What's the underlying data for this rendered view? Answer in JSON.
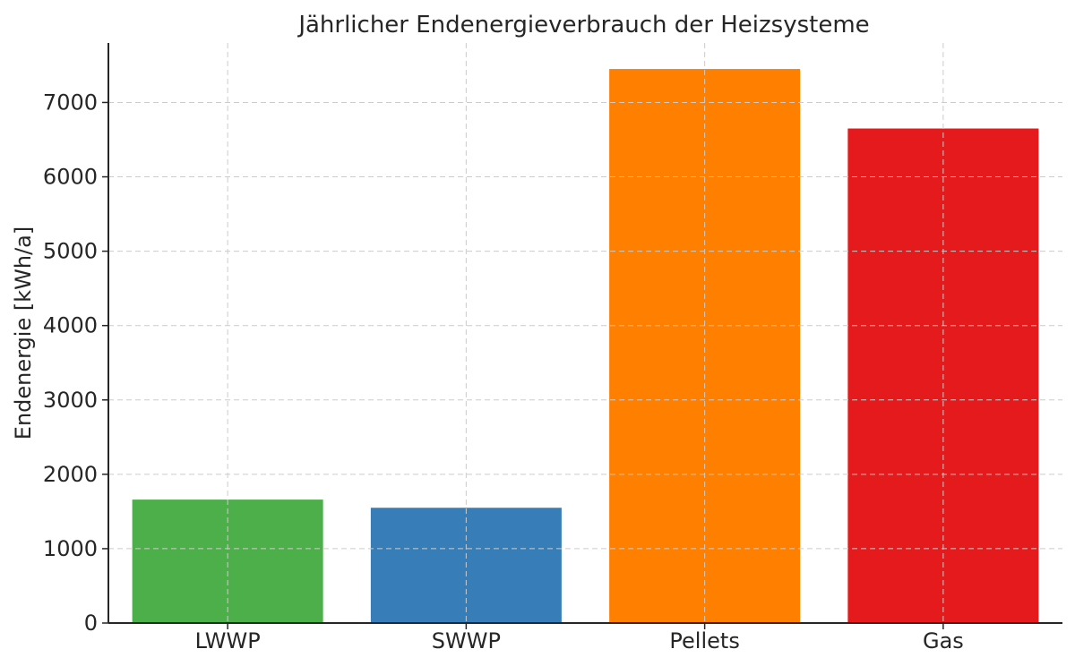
{
  "chart_data": {
    "type": "bar",
    "title": "Jährlicher Endenergieverbrauch der Heizsysteme",
    "xlabel": "",
    "ylabel": "Endenergie [kWh/a]",
    "categories": [
      "LWWP",
      "SWWP",
      "Pellets",
      "Gas"
    ],
    "values": [
      1660,
      1550,
      7450,
      6650
    ],
    "colors": [
      "#4daf4a",
      "#377eb8",
      "#ff7f00",
      "#e41a1c"
    ],
    "ylim": [
      0,
      7800
    ],
    "yticks": [
      0,
      1000,
      2000,
      3000,
      4000,
      5000,
      6000,
      7000
    ],
    "ytick_labels": [
      "0",
      "1000",
      "2000",
      "3000",
      "4000",
      "5000",
      "6000",
      "7000"
    ],
    "grid": true
  }
}
